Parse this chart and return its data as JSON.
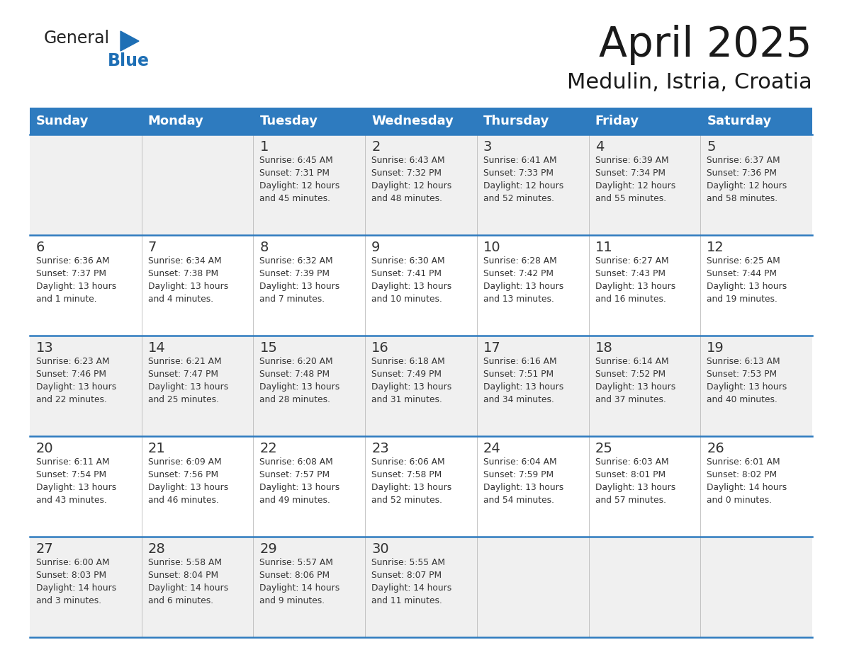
{
  "title": "April 2025",
  "subtitle": "Medulin, Istria, Croatia",
  "days_of_week": [
    "Sunday",
    "Monday",
    "Tuesday",
    "Wednesday",
    "Thursday",
    "Friday",
    "Saturday"
  ],
  "header_bg": "#2E7BBF",
  "header_text": "#FFFFFF",
  "row_bg_even": "#F0F0F0",
  "row_bg_odd": "#FFFFFF",
  "border_color": "#2E7BBF",
  "text_color": "#333333",
  "calendar_data": [
    [
      {
        "day": "",
        "info": ""
      },
      {
        "day": "",
        "info": ""
      },
      {
        "day": "1",
        "info": "Sunrise: 6:45 AM\nSunset: 7:31 PM\nDaylight: 12 hours\nand 45 minutes."
      },
      {
        "day": "2",
        "info": "Sunrise: 6:43 AM\nSunset: 7:32 PM\nDaylight: 12 hours\nand 48 minutes."
      },
      {
        "day": "3",
        "info": "Sunrise: 6:41 AM\nSunset: 7:33 PM\nDaylight: 12 hours\nand 52 minutes."
      },
      {
        "day": "4",
        "info": "Sunrise: 6:39 AM\nSunset: 7:34 PM\nDaylight: 12 hours\nand 55 minutes."
      },
      {
        "day": "5",
        "info": "Sunrise: 6:37 AM\nSunset: 7:36 PM\nDaylight: 12 hours\nand 58 minutes."
      }
    ],
    [
      {
        "day": "6",
        "info": "Sunrise: 6:36 AM\nSunset: 7:37 PM\nDaylight: 13 hours\nand 1 minute."
      },
      {
        "day": "7",
        "info": "Sunrise: 6:34 AM\nSunset: 7:38 PM\nDaylight: 13 hours\nand 4 minutes."
      },
      {
        "day": "8",
        "info": "Sunrise: 6:32 AM\nSunset: 7:39 PM\nDaylight: 13 hours\nand 7 minutes."
      },
      {
        "day": "9",
        "info": "Sunrise: 6:30 AM\nSunset: 7:41 PM\nDaylight: 13 hours\nand 10 minutes."
      },
      {
        "day": "10",
        "info": "Sunrise: 6:28 AM\nSunset: 7:42 PM\nDaylight: 13 hours\nand 13 minutes."
      },
      {
        "day": "11",
        "info": "Sunrise: 6:27 AM\nSunset: 7:43 PM\nDaylight: 13 hours\nand 16 minutes."
      },
      {
        "day": "12",
        "info": "Sunrise: 6:25 AM\nSunset: 7:44 PM\nDaylight: 13 hours\nand 19 minutes."
      }
    ],
    [
      {
        "day": "13",
        "info": "Sunrise: 6:23 AM\nSunset: 7:46 PM\nDaylight: 13 hours\nand 22 minutes."
      },
      {
        "day": "14",
        "info": "Sunrise: 6:21 AM\nSunset: 7:47 PM\nDaylight: 13 hours\nand 25 minutes."
      },
      {
        "day": "15",
        "info": "Sunrise: 6:20 AM\nSunset: 7:48 PM\nDaylight: 13 hours\nand 28 minutes."
      },
      {
        "day": "16",
        "info": "Sunrise: 6:18 AM\nSunset: 7:49 PM\nDaylight: 13 hours\nand 31 minutes."
      },
      {
        "day": "17",
        "info": "Sunrise: 6:16 AM\nSunset: 7:51 PM\nDaylight: 13 hours\nand 34 minutes."
      },
      {
        "day": "18",
        "info": "Sunrise: 6:14 AM\nSunset: 7:52 PM\nDaylight: 13 hours\nand 37 minutes."
      },
      {
        "day": "19",
        "info": "Sunrise: 6:13 AM\nSunset: 7:53 PM\nDaylight: 13 hours\nand 40 minutes."
      }
    ],
    [
      {
        "day": "20",
        "info": "Sunrise: 6:11 AM\nSunset: 7:54 PM\nDaylight: 13 hours\nand 43 minutes."
      },
      {
        "day": "21",
        "info": "Sunrise: 6:09 AM\nSunset: 7:56 PM\nDaylight: 13 hours\nand 46 minutes."
      },
      {
        "day": "22",
        "info": "Sunrise: 6:08 AM\nSunset: 7:57 PM\nDaylight: 13 hours\nand 49 minutes."
      },
      {
        "day": "23",
        "info": "Sunrise: 6:06 AM\nSunset: 7:58 PM\nDaylight: 13 hours\nand 52 minutes."
      },
      {
        "day": "24",
        "info": "Sunrise: 6:04 AM\nSunset: 7:59 PM\nDaylight: 13 hours\nand 54 minutes."
      },
      {
        "day": "25",
        "info": "Sunrise: 6:03 AM\nSunset: 8:01 PM\nDaylight: 13 hours\nand 57 minutes."
      },
      {
        "day": "26",
        "info": "Sunrise: 6:01 AM\nSunset: 8:02 PM\nDaylight: 14 hours\nand 0 minutes."
      }
    ],
    [
      {
        "day": "27",
        "info": "Sunrise: 6:00 AM\nSunset: 8:03 PM\nDaylight: 14 hours\nand 3 minutes."
      },
      {
        "day": "28",
        "info": "Sunrise: 5:58 AM\nSunset: 8:04 PM\nDaylight: 14 hours\nand 6 minutes."
      },
      {
        "day": "29",
        "info": "Sunrise: 5:57 AM\nSunset: 8:06 PM\nDaylight: 14 hours\nand 9 minutes."
      },
      {
        "day": "30",
        "info": "Sunrise: 5:55 AM\nSunset: 8:07 PM\nDaylight: 14 hours\nand 11 minutes."
      },
      {
        "day": "",
        "info": ""
      },
      {
        "day": "",
        "info": ""
      },
      {
        "day": "",
        "info": ""
      }
    ]
  ],
  "logo_color_general": "#222222",
  "logo_color_blue": "#1E6FB5",
  "logo_color_triangle": "#1E6FB5"
}
